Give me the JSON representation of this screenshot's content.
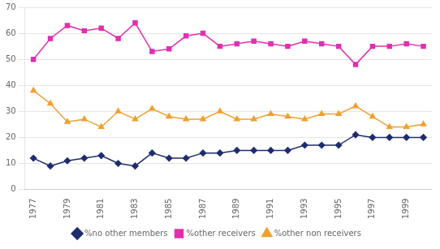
{
  "chart_data": {
    "type": "line",
    "x": [
      1977,
      1978,
      1979,
      1980,
      1981,
      1982,
      1983,
      1984,
      1985,
      1986,
      1987,
      1988,
      1989,
      1990,
      1991,
      1992,
      1993,
      1994,
      1995,
      1996,
      1997,
      1998,
      1999,
      2000
    ],
    "series": [
      {
        "name": "%no other members",
        "color": "#1f2d6e",
        "marker": "diamond",
        "values": [
          12,
          9,
          11,
          12,
          13,
          10,
          9,
          14,
          12,
          12,
          14,
          14,
          15,
          15,
          15,
          15,
          17,
          17,
          17,
          21,
          20,
          20,
          20,
          20
        ]
      },
      {
        "name": "%other receivers",
        "color": "#e030b0",
        "marker": "square",
        "values": [
          50,
          58,
          63,
          61,
          62,
          58,
          64,
          53,
          54,
          59,
          60,
          55,
          56,
          57,
          56,
          55,
          57,
          56,
          55,
          48,
          55,
          55,
          56,
          55
        ]
      },
      {
        "name": "%other non receivers",
        "color": "#f0a030",
        "marker": "triangle",
        "values": [
          38,
          33,
          26,
          27,
          24,
          30,
          27,
          31,
          28,
          27,
          27,
          30,
          27,
          27,
          29,
          28,
          27,
          29,
          29,
          32,
          28,
          24,
          24,
          25
        ]
      }
    ],
    "xlim": [
      1976.5,
      2000.5
    ],
    "xticks": [
      1977,
      1979,
      1981,
      1983,
      1985,
      1987,
      1989,
      1991,
      1993,
      1995,
      1997,
      1999
    ],
    "ylim": [
      0,
      70
    ],
    "yticks": [
      0,
      10,
      20,
      30,
      40,
      50,
      60,
      70
    ],
    "grid": "y",
    "legend": "bottom"
  }
}
